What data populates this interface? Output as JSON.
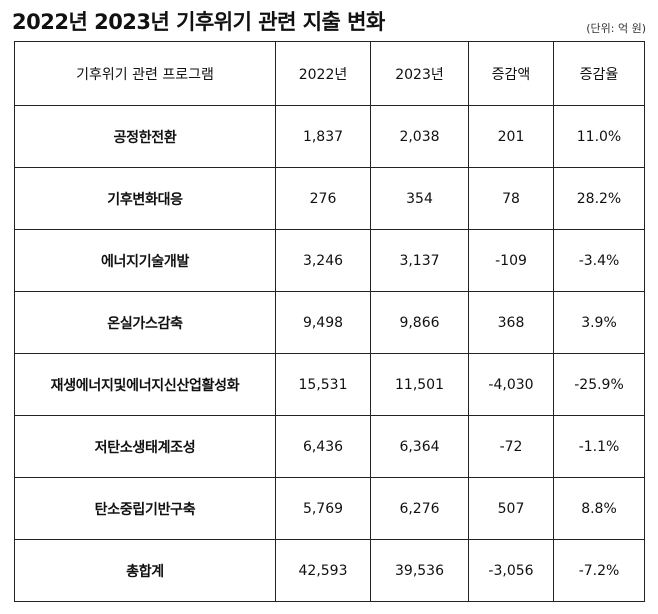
{
  "header": {
    "title": "2022년 2023년 기후위기 관련 지출 변화",
    "unit": "(단위: 억 원)"
  },
  "table": {
    "columns": [
      "기후위기 관련 프로그램",
      "2022년",
      "2023년",
      "증감액",
      "증감율"
    ],
    "rows": [
      [
        "공정한전환",
        "1,837",
        "2,038",
        "201",
        "11.0%"
      ],
      [
        "기후변화대응",
        "276",
        "354",
        "78",
        "28.2%"
      ],
      [
        "에너지기술개발",
        "3,246",
        "3,137",
        "-109",
        "-3.4%"
      ],
      [
        "온실가스감축",
        "9,498",
        "9,866",
        "368",
        "3.9%"
      ],
      [
        "재생에너지및에너지신산업활성화",
        "15,531",
        "11,501",
        "-4,030",
        "-25.9%"
      ],
      [
        "저탄소생태계조성",
        "6,436",
        "6,364",
        "-72",
        "-1.1%"
      ],
      [
        "탄소중립기반구축",
        "5,769",
        "6,276",
        "507",
        "8.8%"
      ],
      [
        "총합계",
        "42,593",
        "39,536",
        "-3,056",
        "-7.2%"
      ]
    ]
  }
}
